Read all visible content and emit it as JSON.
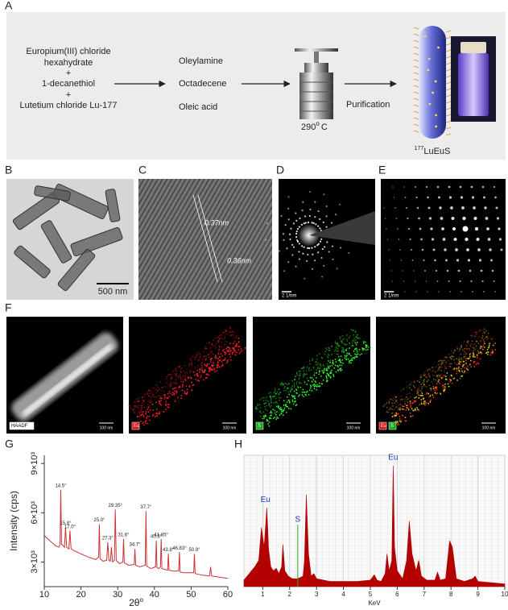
{
  "panel_a": {
    "label": "A",
    "reactants": [
      "Europium(III) chloride",
      "hexahydrate",
      "+",
      "1-decanethiol",
      "+",
      "Lutetium chloride Lu-177"
    ],
    "solvents": [
      "Oleylamine",
      "Octadecene",
      "Oleic acid"
    ],
    "temperature": {
      "value": "290",
      "sup": "o",
      "unit": "C"
    },
    "step": "Purification",
    "product": {
      "isotope": "177",
      "name": "LuEuS"
    }
  },
  "panel_b": {
    "label": "B",
    "scale_bar": "500 nm"
  },
  "panel_c": {
    "label": "C",
    "spacings": [
      "0.37nm",
      "0.36nm"
    ]
  },
  "panel_d": {
    "label": "D",
    "scale_bar": "2 1/nm"
  },
  "panel_e": {
    "label": "E",
    "scale_bar": "2 1/nm"
  },
  "panel_f": {
    "label": "F",
    "maps": [
      {
        "tags": [
          "HAADF"
        ],
        "scale_bar": "100 nm"
      },
      {
        "tags": [
          "Eu"
        ],
        "scale_bar": "100 nm"
      },
      {
        "tags": [
          "S"
        ],
        "scale_bar": "100 nm"
      },
      {
        "tags": [
          "Eu",
          "S"
        ],
        "scale_bar": "100 nm"
      }
    ]
  },
  "chart_data": [
    {
      "type": "line",
      "label": "G",
      "xlabel": "2θ",
      "xlabel_sup": "o",
      "ylabel": "Intensity (cps)",
      "xlim": [
        10,
        60
      ],
      "ylim": [
        1500,
        9500
      ],
      "xticks": [
        10,
        20,
        30,
        40,
        50,
        60
      ],
      "yticks": [
        {
          "value": 3000,
          "label": "3×10³"
        },
        {
          "value": 6000,
          "label": "6×10³"
        },
        {
          "value": 9000,
          "label": "9×10³"
        }
      ],
      "color": "#cc3333",
      "x": [
        10,
        11,
        12,
        13,
        14,
        14.3,
        14.5,
        14.7,
        15.5,
        15.8,
        16.1,
        16.7,
        17.0,
        17.3,
        18,
        20,
        22,
        24,
        24.8,
        25.0,
        25.2,
        26,
        27.0,
        27.3,
        27.6,
        28,
        28.3,
        28.6,
        29.1,
        29.35,
        29.6,
        30.5,
        31.4,
        31.6,
        31.8,
        33,
        34.5,
        34.7,
        34.9,
        36,
        37.5,
        37.7,
        37.9,
        39,
        40.3,
        40.5,
        40.7,
        41.2,
        41.65,
        41.85,
        42.05,
        43.6,
        43.8,
        44.0,
        45,
        46.6,
        46.83,
        47.0,
        48,
        50.7,
        50.9,
        51.1,
        52,
        53,
        55,
        55.3,
        55.6,
        57,
        60
      ],
      "values": [
        4600,
        4400,
        4200,
        4000,
        3900,
        4100,
        7400,
        4100,
        3900,
        5100,
        3900,
        3800,
        4900,
        3800,
        3700,
        3500,
        3300,
        3150,
        3300,
        5300,
        3200,
        3050,
        3100,
        4200,
        3100,
        3050,
        3900,
        3000,
        3100,
        6200,
        3100,
        2900,
        3000,
        4400,
        2950,
        2800,
        2850,
        3800,
        2800,
        2700,
        2800,
        6100,
        2750,
        2600,
        2700,
        4300,
        2650,
        2600,
        2700,
        4400,
        2600,
        2500,
        3500,
        2500,
        2450,
        2450,
        3600,
        2400,
        2350,
        2350,
        3500,
        2300,
        2250,
        2200,
        2150,
        2700,
        2150,
        2100,
        2000
      ],
      "annotations": [
        {
          "x": 14.5,
          "label": "14.5°"
        },
        {
          "x": 15.8,
          "label": "15.8°"
        },
        {
          "x": 17.0,
          "label": "17.0°"
        },
        {
          "x": 25.0,
          "label": "25.0°"
        },
        {
          "x": 27.3,
          "label": "27.3°"
        },
        {
          "x": 29.35,
          "label": "29.35°"
        },
        {
          "x": 31.6,
          "label": "31.6°"
        },
        {
          "x": 34.7,
          "label": "34.7°"
        },
        {
          "x": 37.7,
          "label": "37.7°"
        },
        {
          "x": 40.5,
          "label": "40.5°"
        },
        {
          "x": 41.85,
          "label": "41.85°"
        },
        {
          "x": 43.8,
          "label": "43.8°"
        },
        {
          "x": 46.83,
          "label": "46.83°"
        },
        {
          "x": 50.9,
          "label": "50.9°"
        }
      ]
    },
    {
      "type": "area",
      "label": "H",
      "xlabel": "KeV",
      "xlim": [
        0.3,
        10
      ],
      "ylim": [
        0,
        100
      ],
      "xticks": [
        1,
        2,
        3,
        4,
        5,
        6,
        7,
        8,
        9,
        10
      ],
      "grid": true,
      "color": "#b30000",
      "x": [
        0.3,
        0.5,
        0.7,
        0.85,
        0.95,
        1.05,
        1.15,
        1.22,
        1.3,
        1.4,
        1.5,
        1.6,
        1.7,
        1.75,
        1.82,
        1.95,
        2.1,
        2.3,
        2.5,
        2.55,
        2.62,
        2.7,
        2.8,
        2.9,
        3.0,
        3.5,
        4.0,
        4.5,
        5.0,
        5.15,
        5.25,
        5.4,
        5.55,
        5.62,
        5.7,
        5.8,
        5.85,
        5.9,
        6.0,
        6.2,
        6.35,
        6.45,
        6.55,
        6.7,
        6.8,
        6.9,
        7.1,
        7.4,
        7.5,
        7.6,
        7.8,
        7.95,
        8.05,
        8.2,
        8.5,
        8.8,
        8.9,
        9.0,
        9.5,
        10
      ],
      "values": [
        5,
        10,
        15,
        20,
        45,
        30,
        60,
        28,
        15,
        12,
        14,
        10,
        15,
        32,
        12,
        8,
        6,
        6,
        8,
        20,
        70,
        25,
        8,
        10,
        6,
        4,
        4,
        4,
        5,
        9,
        5,
        4,
        10,
        25,
        12,
        20,
        92,
        30,
        12,
        6,
        20,
        50,
        25,
        12,
        20,
        8,
        5,
        5,
        11,
        5,
        6,
        35,
        30,
        6,
        4,
        6,
        8,
        4,
        3,
        2
      ],
      "annotations": [
        {
          "x": 1.1,
          "label": "Eu",
          "color": "#2233bb"
        },
        {
          "x": 2.3,
          "label": "S",
          "color": "#2233bb",
          "line_color": "#33aa33"
        },
        {
          "x": 5.85,
          "label": "Eu",
          "color": "#2233bb"
        }
      ]
    }
  ]
}
